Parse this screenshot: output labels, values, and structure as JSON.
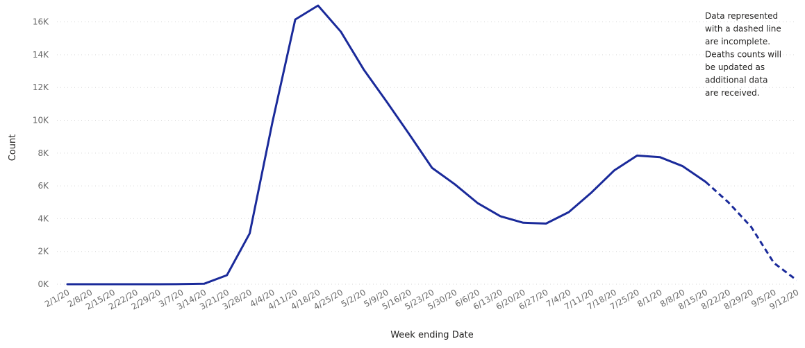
{
  "chart_data": {
    "type": "line",
    "xlabel": "Week ending Date",
    "ylabel": "Count",
    "ylim": [
      0,
      17000
    ],
    "y_ticks": [
      0,
      2000,
      4000,
      6000,
      8000,
      10000,
      12000,
      14000,
      16000
    ],
    "y_tick_labels": [
      "0K",
      "2K",
      "4K",
      "6K",
      "8K",
      "10K",
      "12K",
      "14K",
      "16K"
    ],
    "grid": "horizontal dotted",
    "line_color": "#1a2a9a",
    "categories": [
      "2/1/20",
      "2/8/20",
      "2/15/20",
      "2/22/20",
      "2/29/20",
      "3/7/20",
      "3/14/20",
      "3/21/20",
      "3/28/20",
      "4/4/20",
      "4/11/20",
      "4/18/20",
      "4/25/20",
      "5/2/20",
      "5/9/20",
      "5/16/20",
      "5/23/20",
      "5/30/20",
      "6/6/20",
      "6/13/20",
      "6/20/20",
      "6/27/20",
      "7/4/20",
      "7/11/20",
      "7/18/20",
      "7/25/20",
      "8/1/20",
      "8/8/20",
      "8/15/20",
      "8/22/20",
      "8/29/20",
      "9/5/20",
      "9/12/20"
    ],
    "values": [
      0,
      0,
      0,
      0,
      0,
      10,
      30,
      550,
      3100,
      9900,
      16150,
      17000,
      15400,
      13100,
      11150,
      9150,
      7100,
      6100,
      4950,
      4150,
      3750,
      3700,
      4400,
      5600,
      6950,
      7850,
      7750,
      7200,
      6250,
      5000,
      3500,
      1300,
      250
    ],
    "complete_through": "8/15/20",
    "note": [
      "Data represented",
      "with a dashed line",
      "are incomplete.",
      "Deaths counts will",
      "be updated as",
      "additional data",
      "are received."
    ]
  }
}
